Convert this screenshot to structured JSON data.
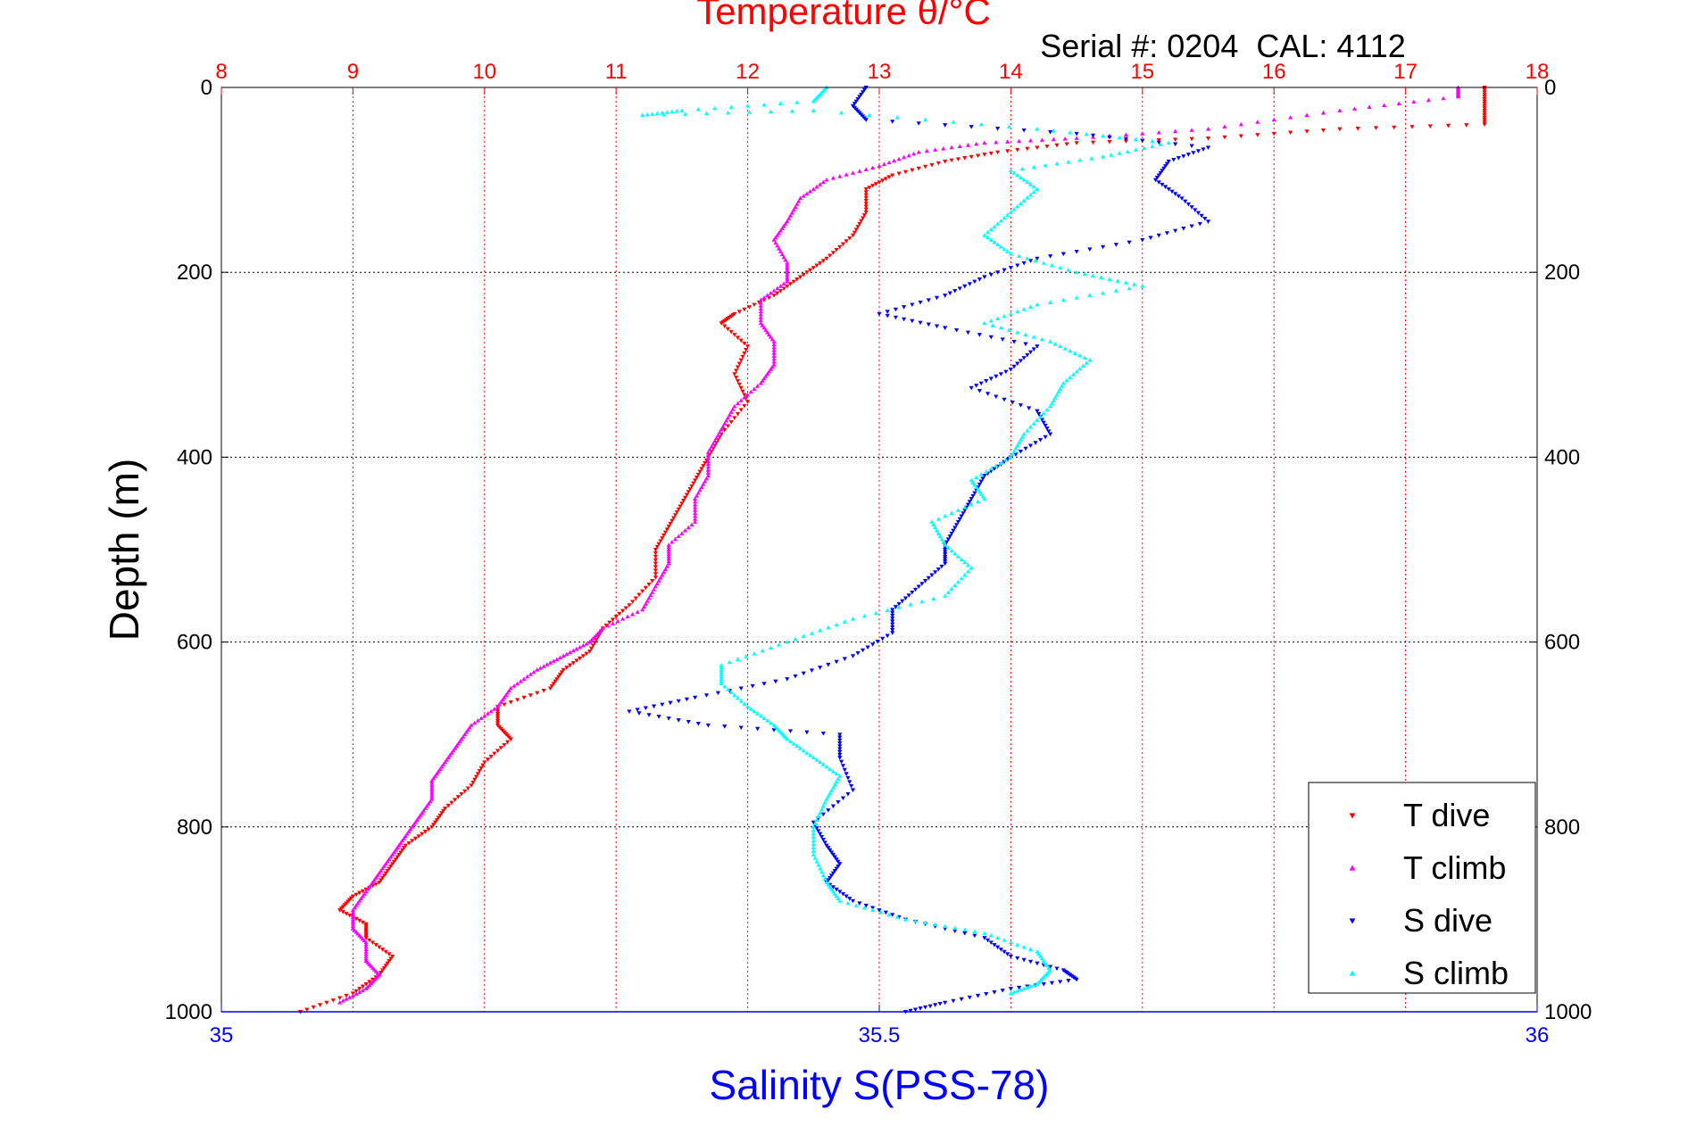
{
  "chart_data": {
    "type": "scatter",
    "title": "Temperature θ/°C",
    "subtitle": "Serial #: 0204  CAL: 4112",
    "ylabel": "Depth (m)",
    "xlabel": "Salinity S(PSS-78)",
    "y_axis": {
      "min": 0,
      "max": 1000,
      "reversed": true,
      "ticks": [
        "0",
        "200",
        "400",
        "600",
        "800",
        "1000"
      ],
      "tick_values": [
        0,
        200,
        400,
        600,
        800,
        1000
      ]
    },
    "temperature_axis": {
      "position": "top",
      "min": 8,
      "max": 18,
      "ticks": [
        "8",
        "9",
        "10",
        "11",
        "12",
        "13",
        "14",
        "15",
        "16",
        "17",
        "18"
      ],
      "tick_values": [
        8,
        9,
        10,
        11,
        12,
        13,
        14,
        15,
        16,
        17,
        18
      ],
      "grid": true
    },
    "salinity_axis": {
      "position": "bottom",
      "min": 35,
      "max": 36,
      "ticks": [
        "35",
        "35.5",
        "36"
      ],
      "tick_values": [
        35,
        35.5,
        36
      ]
    },
    "grid": true,
    "legend": "bottom-right",
    "colors": {
      "title": "#ff0000",
      "temperature_axis": "#ff0000",
      "salinity_axis": "#0000ff",
      "grid_vertical": "#ff0000",
      "grid_horizontal": "#000000"
    },
    "series": [
      {
        "name": "T dive",
        "axis": "temperature",
        "marker": "triangle-down",
        "color": "#ff0000",
        "points": [
          [
            17.6,
            0
          ],
          [
            17.6,
            20
          ],
          [
            17.6,
            40
          ],
          [
            16.5,
            45
          ],
          [
            15.5,
            55
          ],
          [
            14.5,
            60
          ],
          [
            13.9,
            70
          ],
          [
            13.5,
            80
          ],
          [
            13.1,
            95
          ],
          [
            12.9,
            110
          ],
          [
            12.9,
            135
          ],
          [
            12.8,
            160
          ],
          [
            12.6,
            185
          ],
          [
            12.4,
            205
          ],
          [
            12.2,
            225
          ],
          [
            11.9,
            245
          ],
          [
            11.8,
            255
          ],
          [
            12.0,
            280
          ],
          [
            11.9,
            310
          ],
          [
            12.0,
            340
          ],
          [
            11.8,
            375
          ],
          [
            11.7,
            400
          ],
          [
            11.6,
            425
          ],
          [
            11.5,
            450
          ],
          [
            11.4,
            475
          ],
          [
            11.3,
            500
          ],
          [
            11.3,
            530
          ],
          [
            11.1,
            560
          ],
          [
            10.9,
            585
          ],
          [
            10.8,
            610
          ],
          [
            10.6,
            630
          ],
          [
            10.5,
            650
          ],
          [
            10.1,
            670
          ],
          [
            10.1,
            690
          ],
          [
            10.2,
            705
          ],
          [
            10.0,
            730
          ],
          [
            9.9,
            755
          ],
          [
            9.7,
            780
          ],
          [
            9.6,
            800
          ],
          [
            9.4,
            820
          ],
          [
            9.3,
            840
          ],
          [
            9.2,
            860
          ],
          [
            9.0,
            875
          ],
          [
            8.9,
            890
          ],
          [
            9.1,
            905
          ],
          [
            9.1,
            920
          ],
          [
            9.3,
            940
          ],
          [
            9.2,
            960
          ],
          [
            9.0,
            980
          ],
          [
            8.6,
            1000
          ]
        ]
      },
      {
        "name": "T climb",
        "axis": "temperature",
        "marker": "triangle-up",
        "color": "#ff00ff",
        "points": [
          [
            17.4,
            0
          ],
          [
            17.4,
            10
          ],
          [
            16.5,
            25
          ],
          [
            15.5,
            45
          ],
          [
            14.5,
            55
          ],
          [
            13.8,
            60
          ],
          [
            13.3,
            70
          ],
          [
            13.0,
            85
          ],
          [
            12.6,
            100
          ],
          [
            12.4,
            120
          ],
          [
            12.3,
            145
          ],
          [
            12.2,
            165
          ],
          [
            12.3,
            190
          ],
          [
            12.3,
            210
          ],
          [
            12.1,
            230
          ],
          [
            12.1,
            255
          ],
          [
            12.2,
            275
          ],
          [
            12.2,
            300
          ],
          [
            12.1,
            320
          ],
          [
            11.9,
            345
          ],
          [
            11.8,
            370
          ],
          [
            11.7,
            395
          ],
          [
            11.7,
            420
          ],
          [
            11.6,
            445
          ],
          [
            11.6,
            470
          ],
          [
            11.4,
            495
          ],
          [
            11.4,
            515
          ],
          [
            11.3,
            540
          ],
          [
            11.2,
            565
          ],
          [
            10.9,
            585
          ],
          [
            10.8,
            600
          ],
          [
            10.6,
            615
          ],
          [
            10.4,
            630
          ],
          [
            10.2,
            650
          ],
          [
            10.1,
            670
          ],
          [
            9.9,
            690
          ],
          [
            9.8,
            710
          ],
          [
            9.7,
            730
          ],
          [
            9.6,
            750
          ],
          [
            9.6,
            770
          ],
          [
            9.5,
            790
          ],
          [
            9.4,
            810
          ],
          [
            9.3,
            830
          ],
          [
            9.2,
            850
          ],
          [
            9.1,
            870
          ],
          [
            9.0,
            890
          ],
          [
            9.0,
            910
          ],
          [
            9.1,
            925
          ],
          [
            9.1,
            945
          ],
          [
            9.2,
            960
          ],
          [
            9.1,
            975
          ],
          [
            8.9,
            990
          ]
        ]
      },
      {
        "name": "S dive",
        "axis": "salinity",
        "marker": "triangle-down",
        "color": "#0000ff",
        "points": [
          [
            35.49,
            0
          ],
          [
            35.48,
            20
          ],
          [
            35.49,
            35
          ],
          [
            35.65,
            50
          ],
          [
            35.75,
            65
          ],
          [
            35.72,
            80
          ],
          [
            35.71,
            100
          ],
          [
            35.73,
            120
          ],
          [
            35.75,
            145
          ],
          [
            35.7,
            165
          ],
          [
            35.62,
            185
          ],
          [
            35.58,
            205
          ],
          [
            35.55,
            225
          ],
          [
            35.5,
            245
          ],
          [
            35.55,
            260
          ],
          [
            35.62,
            280
          ],
          [
            35.6,
            305
          ],
          [
            35.57,
            325
          ],
          [
            35.62,
            350
          ],
          [
            35.63,
            375
          ],
          [
            35.6,
            400
          ],
          [
            35.58,
            420
          ],
          [
            35.57,
            445
          ],
          [
            35.56,
            470
          ],
          [
            35.55,
            495
          ],
          [
            35.55,
            515
          ],
          [
            35.53,
            540
          ],
          [
            35.51,
            565
          ],
          [
            35.51,
            590
          ],
          [
            35.48,
            615
          ],
          [
            35.43,
            640
          ],
          [
            35.36,
            660
          ],
          [
            35.31,
            675
          ],
          [
            35.37,
            690
          ],
          [
            35.47,
            700
          ],
          [
            35.47,
            725
          ],
          [
            35.48,
            760
          ],
          [
            35.45,
            795
          ],
          [
            35.46,
            820
          ],
          [
            35.47,
            840
          ],
          [
            35.46,
            860
          ],
          [
            35.48,
            880
          ],
          [
            35.52,
            900
          ],
          [
            35.58,
            920
          ],
          [
            35.6,
            940
          ],
          [
            35.64,
            955
          ],
          [
            35.65,
            965
          ],
          [
            35.6,
            975
          ],
          [
            35.55,
            990
          ],
          [
            35.52,
            1000
          ]
        ]
      },
      {
        "name": "S climb",
        "axis": "salinity",
        "marker": "triangle-up",
        "color": "#00ffff",
        "points": [
          [
            35.46,
            0
          ],
          [
            35.45,
            15
          ],
          [
            35.35,
            25
          ],
          [
            35.32,
            30
          ],
          [
            35.45,
            25
          ],
          [
            35.62,
            45
          ],
          [
            35.72,
            60
          ],
          [
            35.67,
            75
          ],
          [
            35.6,
            90
          ],
          [
            35.62,
            110
          ],
          [
            35.6,
            135
          ],
          [
            35.58,
            160
          ],
          [
            35.6,
            180
          ],
          [
            35.65,
            200
          ],
          [
            35.7,
            215
          ],
          [
            35.62,
            235
          ],
          [
            35.58,
            255
          ],
          [
            35.63,
            275
          ],
          [
            35.66,
            295
          ],
          [
            35.64,
            320
          ],
          [
            35.63,
            345
          ],
          [
            35.61,
            375
          ],
          [
            35.6,
            400
          ],
          [
            35.57,
            425
          ],
          [
            35.58,
            445
          ],
          [
            35.54,
            470
          ],
          [
            35.55,
            495
          ],
          [
            35.57,
            520
          ],
          [
            35.55,
            550
          ],
          [
            35.48,
            575
          ],
          [
            35.43,
            600
          ],
          [
            35.38,
            625
          ],
          [
            35.38,
            645
          ],
          [
            35.4,
            670
          ],
          [
            35.42,
            690
          ],
          [
            35.43,
            705
          ],
          [
            35.45,
            725
          ],
          [
            35.47,
            745
          ],
          [
            35.46,
            770
          ],
          [
            35.45,
            800
          ],
          [
            35.45,
            830
          ],
          [
            35.46,
            860
          ],
          [
            35.47,
            880
          ],
          [
            35.52,
            900
          ],
          [
            35.58,
            915
          ],
          [
            35.62,
            935
          ],
          [
            35.63,
            955
          ],
          [
            35.62,
            970
          ],
          [
            35.6,
            980
          ]
        ]
      }
    ]
  }
}
